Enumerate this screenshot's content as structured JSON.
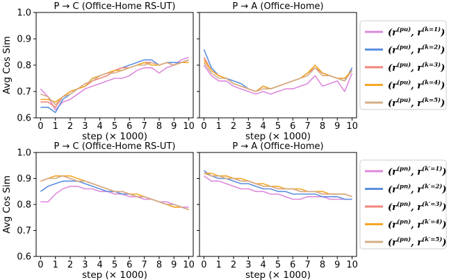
{
  "chart_data": [
    {
      "type": "line",
      "title": "P → C (Office-Home RS-UT)",
      "xlabel": "step (× 1000)",
      "ylabel": "Avg Cos Sim",
      "xlim": [
        -0.3,
        10.3
      ],
      "ylim": [
        0.6,
        1.0
      ],
      "xticks": [
        "0",
        "1",
        "2",
        "3",
        "4",
        "5",
        "6",
        "7",
        "8",
        "9",
        "10"
      ],
      "yticks": [
        "0.6",
        "0.7",
        "0.8",
        "0.9",
        "1.0"
      ],
      "x": [
        0,
        0.5,
        1,
        1.5,
        2,
        2.5,
        3,
        3.5,
        4,
        4.5,
        5,
        5.5,
        6,
        6.5,
        7,
        7.5,
        8,
        8.5,
        9,
        9.5,
        10
      ],
      "series": [
        {
          "name_id": "k1",
          "values": [
            0.71,
            0.68,
            0.63,
            0.66,
            0.67,
            0.69,
            0.71,
            0.72,
            0.73,
            0.74,
            0.75,
            0.75,
            0.76,
            0.78,
            0.79,
            0.79,
            0.77,
            0.79,
            0.8,
            0.82,
            0.83
          ]
        },
        {
          "name_id": "k2",
          "values": [
            0.64,
            0.64,
            0.62,
            0.67,
            0.69,
            0.71,
            0.72,
            0.75,
            0.76,
            0.77,
            0.78,
            0.79,
            0.8,
            0.81,
            0.82,
            0.82,
            0.8,
            0.81,
            0.81,
            0.81,
            0.82
          ]
        },
        {
          "name_id": "k3",
          "values": [
            0.66,
            0.66,
            0.64,
            0.68,
            0.7,
            0.71,
            0.72,
            0.74,
            0.75,
            0.76,
            0.78,
            0.79,
            0.79,
            0.8,
            0.81,
            0.81,
            0.8,
            0.81,
            0.8,
            0.81,
            0.82
          ]
        },
        {
          "name_id": "k4",
          "values": [
            0.67,
            0.67,
            0.66,
            0.68,
            0.7,
            0.71,
            0.72,
            0.75,
            0.76,
            0.77,
            0.78,
            0.78,
            0.79,
            0.8,
            0.81,
            0.8,
            0.8,
            0.81,
            0.8,
            0.81,
            0.81
          ]
        },
        {
          "name_id": "k5",
          "values": [
            0.69,
            0.68,
            0.65,
            0.68,
            0.69,
            0.71,
            0.73,
            0.74,
            0.76,
            0.77,
            0.77,
            0.78,
            0.79,
            0.8,
            0.8,
            0.81,
            0.8,
            0.81,
            0.8,
            0.81,
            0.82
          ]
        }
      ]
    },
    {
      "type": "line",
      "title": "P → A (Office-Home)",
      "xlabel": "step (× 1000)",
      "ylabel": "",
      "xlim": [
        -0.3,
        10.3
      ],
      "ylim": [
        0.6,
        1.0
      ],
      "xticks": [
        "0",
        "1",
        "2",
        "3",
        "4",
        "5",
        "6",
        "7",
        "8",
        "9",
        "10"
      ],
      "yticks": [],
      "x": [
        0,
        0.5,
        1,
        1.5,
        2,
        2.5,
        3,
        3.5,
        4,
        4.5,
        5,
        5.5,
        6,
        6.5,
        7,
        7.5,
        8,
        8.5,
        9,
        9.5,
        10
      ],
      "series": [
        {
          "name_id": "k1",
          "values": [
            0.8,
            0.76,
            0.74,
            0.74,
            0.72,
            0.71,
            0.7,
            0.69,
            0.7,
            0.69,
            0.7,
            0.71,
            0.71,
            0.72,
            0.73,
            0.76,
            0.72,
            0.73,
            0.74,
            0.7,
            0.77
          ]
        },
        {
          "name_id": "k2",
          "values": [
            0.86,
            0.79,
            0.76,
            0.75,
            0.74,
            0.73,
            0.71,
            0.7,
            0.72,
            0.71,
            0.72,
            0.73,
            0.74,
            0.75,
            0.77,
            0.79,
            0.77,
            0.76,
            0.75,
            0.74,
            0.79
          ]
        },
        {
          "name_id": "k3",
          "values": [
            0.83,
            0.78,
            0.76,
            0.75,
            0.73,
            0.72,
            0.71,
            0.7,
            0.72,
            0.71,
            0.72,
            0.73,
            0.74,
            0.75,
            0.77,
            0.79,
            0.77,
            0.76,
            0.75,
            0.75,
            0.78
          ]
        },
        {
          "name_id": "k4",
          "values": [
            0.82,
            0.78,
            0.76,
            0.75,
            0.73,
            0.72,
            0.71,
            0.7,
            0.72,
            0.71,
            0.72,
            0.73,
            0.74,
            0.75,
            0.77,
            0.8,
            0.77,
            0.76,
            0.75,
            0.75,
            0.78
          ]
        },
        {
          "name_id": "k5",
          "values": [
            0.81,
            0.77,
            0.75,
            0.75,
            0.73,
            0.72,
            0.71,
            0.7,
            0.71,
            0.71,
            0.72,
            0.73,
            0.74,
            0.75,
            0.76,
            0.79,
            0.76,
            0.76,
            0.75,
            0.74,
            0.78
          ]
        }
      ]
    },
    {
      "type": "line",
      "title": "P → C (Office-Home RS-UT)",
      "xlabel": "step (× 1000)",
      "ylabel": "Avg Cos Sim",
      "xlim": [
        -0.3,
        10.3
      ],
      "ylim": [
        0.6,
        1.0
      ],
      "xticks": [
        "0",
        "1",
        "2",
        "3",
        "4",
        "5",
        "6",
        "7",
        "8",
        "9",
        "10"
      ],
      "yticks": [
        "0.6",
        "0.7",
        "0.8",
        "0.9",
        "1.0"
      ],
      "x": [
        0,
        0.5,
        1,
        1.5,
        2,
        2.5,
        3,
        3.5,
        4,
        4.5,
        5,
        5.5,
        6,
        6.5,
        7,
        7.5,
        8,
        8.5,
        9,
        9.5,
        10
      ],
      "series": [
        {
          "name_id": "k1",
          "values": [
            0.81,
            0.81,
            0.84,
            0.86,
            0.87,
            0.87,
            0.86,
            0.86,
            0.85,
            0.85,
            0.84,
            0.84,
            0.83,
            0.83,
            0.82,
            0.82,
            0.81,
            0.81,
            0.8,
            0.79,
            0.79
          ]
        },
        {
          "name_id": "k2",
          "values": [
            0.85,
            0.87,
            0.88,
            0.89,
            0.89,
            0.89,
            0.88,
            0.87,
            0.86,
            0.85,
            0.85,
            0.84,
            0.84,
            0.83,
            0.83,
            0.82,
            0.81,
            0.8,
            0.8,
            0.79,
            0.78
          ]
        },
        {
          "name_id": "k3",
          "values": [
            0.89,
            0.9,
            0.91,
            0.91,
            0.9,
            0.89,
            0.89,
            0.88,
            0.87,
            0.86,
            0.85,
            0.85,
            0.84,
            0.83,
            0.83,
            0.82,
            0.81,
            0.8,
            0.79,
            0.79,
            0.78
          ]
        },
        {
          "name_id": "k4",
          "values": [
            0.89,
            0.9,
            0.91,
            0.91,
            0.91,
            0.9,
            0.89,
            0.88,
            0.87,
            0.86,
            0.85,
            0.85,
            0.84,
            0.84,
            0.83,
            0.82,
            0.81,
            0.8,
            0.79,
            0.79,
            0.78
          ]
        },
        {
          "name_id": "k5",
          "values": [
            0.89,
            0.9,
            0.9,
            0.91,
            0.9,
            0.89,
            0.89,
            0.88,
            0.87,
            0.86,
            0.85,
            0.85,
            0.84,
            0.83,
            0.83,
            0.82,
            0.81,
            0.8,
            0.8,
            0.79,
            0.78
          ]
        }
      ]
    },
    {
      "type": "line",
      "title": "P → A (Office-Home)",
      "xlabel": "step (× 1000)",
      "ylabel": "",
      "xlim": [
        -0.3,
        10.3
      ],
      "ylim": [
        0.6,
        1.0
      ],
      "xticks": [
        "0",
        "1",
        "2",
        "3",
        "4",
        "5",
        "6",
        "7",
        "8",
        "9",
        "10"
      ],
      "yticks": [],
      "x": [
        0,
        0.5,
        1,
        1.5,
        2,
        2.5,
        3,
        3.5,
        4,
        4.5,
        5,
        5.5,
        6,
        6.5,
        7,
        7.5,
        8,
        8.5,
        9,
        9.5,
        10
      ],
      "series": [
        {
          "name_id": "k1",
          "values": [
            0.91,
            0.89,
            0.89,
            0.88,
            0.87,
            0.86,
            0.86,
            0.85,
            0.85,
            0.84,
            0.84,
            0.83,
            0.82,
            0.82,
            0.83,
            0.83,
            0.83,
            0.82,
            0.82,
            0.82,
            0.82
          ]
        },
        {
          "name_id": "k2",
          "values": [
            0.93,
            0.91,
            0.9,
            0.9,
            0.89,
            0.88,
            0.88,
            0.87,
            0.86,
            0.86,
            0.85,
            0.85,
            0.84,
            0.84,
            0.84,
            0.84,
            0.83,
            0.83,
            0.83,
            0.82,
            0.82
          ]
        },
        {
          "name_id": "k3",
          "values": [
            0.92,
            0.91,
            0.91,
            0.91,
            0.9,
            0.89,
            0.89,
            0.88,
            0.87,
            0.87,
            0.86,
            0.86,
            0.86,
            0.85,
            0.85,
            0.85,
            0.84,
            0.84,
            0.84,
            0.84,
            0.83
          ]
        },
        {
          "name_id": "k4",
          "values": [
            0.92,
            0.92,
            0.91,
            0.91,
            0.9,
            0.9,
            0.89,
            0.88,
            0.88,
            0.87,
            0.87,
            0.86,
            0.86,
            0.86,
            0.85,
            0.85,
            0.85,
            0.84,
            0.84,
            0.84,
            0.83
          ]
        },
        {
          "name_id": "k5",
          "values": [
            0.92,
            0.91,
            0.91,
            0.9,
            0.9,
            0.89,
            0.89,
            0.88,
            0.87,
            0.87,
            0.86,
            0.86,
            0.86,
            0.85,
            0.85,
            0.85,
            0.84,
            0.84,
            0.84,
            0.84,
            0.83
          ]
        }
      ]
    }
  ],
  "series_colors": {
    "k1": "#dd88dd",
    "k2": "#5b8ee0",
    "k3": "#f2857a",
    "k4": "#f5a623",
    "k5": "#d4ad86"
  },
  "legend_top": [
    {
      "id": "k1",
      "pre": "(r",
      "sup1": "(pu)",
      "mid": ", r",
      "sup2": "(k=1)",
      "post": ")"
    },
    {
      "id": "k2",
      "pre": "(r",
      "sup1": "(pu)",
      "mid": ", r",
      "sup2": "(k=2)",
      "post": ")"
    },
    {
      "id": "k3",
      "pre": "(r",
      "sup1": "(pu)",
      "mid": ", r",
      "sup2": "(k=3)",
      "post": ")"
    },
    {
      "id": "k4",
      "pre": "(r",
      "sup1": "(pu)",
      "mid": ", r",
      "sup2": "(k=4)",
      "post": ")"
    },
    {
      "id": "k5",
      "pre": "(r",
      "sup1": "(pu)",
      "mid": ", r",
      "sup2": "(k=5)",
      "post": ")"
    }
  ],
  "legend_bottom": [
    {
      "id": "k1",
      "pre": "(r",
      "sup1": "(pn)",
      "mid": ", r",
      "sup2": "(k′=1)",
      "post": ")"
    },
    {
      "id": "k2",
      "pre": "(r",
      "sup1": "(pn)",
      "mid": ", r",
      "sup2": "(k′=2)",
      "post": ")"
    },
    {
      "id": "k3",
      "pre": "(r",
      "sup1": "(pn)",
      "mid": ", r",
      "sup2": "(k′=3)",
      "post": ")"
    },
    {
      "id": "k4",
      "pre": "(r",
      "sup1": "(pn)",
      "mid": ", r",
      "sup2": "(k′=4)",
      "post": ")"
    },
    {
      "id": "k5",
      "pre": "(r",
      "sup1": "(pn)",
      "mid": ", r",
      "sup2": "(k′=5)",
      "post": ")"
    }
  ]
}
